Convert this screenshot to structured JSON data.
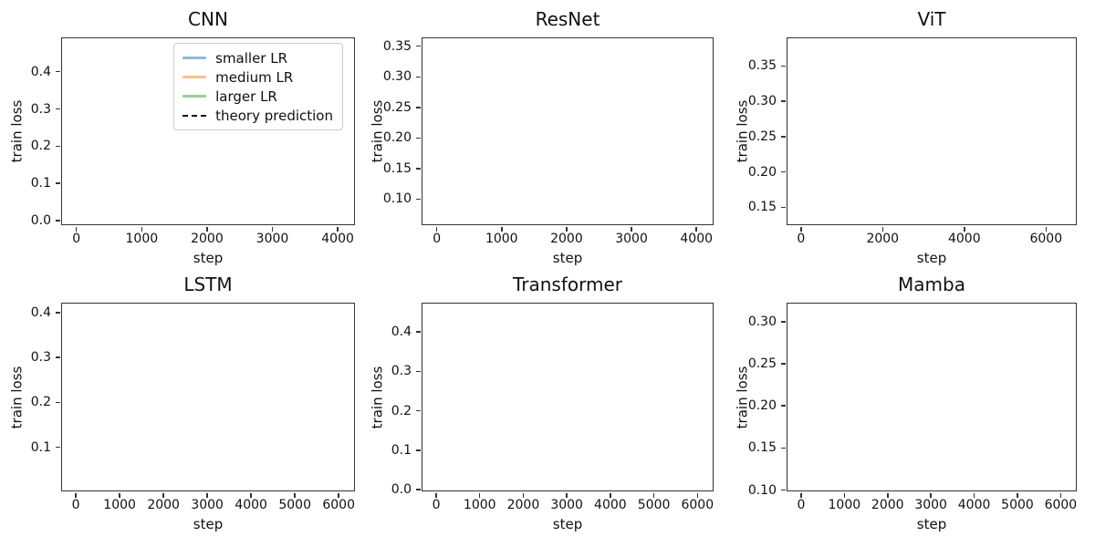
{
  "figure": {
    "background": "#ffffff",
    "text_color": "#111111",
    "spine_color": "#333333"
  },
  "legend": {
    "position": "upper-right of CNN subplot",
    "items": [
      {
        "label": "smaller LR",
        "color": "#8fbbd9",
        "dash": false
      },
      {
        "label": "medium LR",
        "color": "#ffbf86",
        "dash": false
      },
      {
        "label": "larger LR",
        "color": "#95cf95",
        "dash": false
      },
      {
        "label": "theory prediction",
        "color": "#111111",
        "dash": true
      }
    ]
  },
  "chart_data": [
    {
      "type": "line",
      "title": "CNN",
      "xlabel": "step",
      "ylabel": "train loss",
      "xlim": [
        -220,
        4250
      ],
      "ylim": [
        -0.01,
        0.49
      ],
      "xtick_values": [
        0,
        1000,
        2000,
        3000,
        4000
      ],
      "xtick_labels": [
        "0",
        "1000",
        "2000",
        "3000",
        "4000"
      ],
      "ytick_values": [
        0.0,
        0.1,
        0.2,
        0.3,
        0.4
      ],
      "ytick_labels": [
        "0.0",
        "0.1",
        "0.2",
        "0.3",
        "0.4"
      ],
      "grid": false,
      "has_legend": true,
      "series": []
    },
    {
      "type": "line",
      "title": "ResNet",
      "xlabel": "step",
      "ylabel": "train loss",
      "xlim": [
        -220,
        4250
      ],
      "ylim": [
        0.059,
        0.363
      ],
      "xtick_values": [
        0,
        1000,
        2000,
        3000,
        4000
      ],
      "xtick_labels": [
        "0",
        "1000",
        "2000",
        "3000",
        "4000"
      ],
      "ytick_values": [
        0.1,
        0.15,
        0.2,
        0.25,
        0.3,
        0.35
      ],
      "ytick_labels": [
        "0.10",
        "0.15",
        "0.20",
        "0.25",
        "0.30",
        "0.35"
      ],
      "grid": false,
      "has_legend": false,
      "series": []
    },
    {
      "type": "line",
      "title": "ViT",
      "xlabel": "step",
      "ylabel": "train loss",
      "xlim": [
        -330,
        6730
      ],
      "ylim": [
        0.126,
        0.389
      ],
      "xtick_values": [
        0,
        2000,
        4000,
        6000
      ],
      "xtick_labels": [
        "0",
        "2000",
        "4000",
        "6000"
      ],
      "ytick_values": [
        0.15,
        0.2,
        0.25,
        0.3,
        0.35
      ],
      "ytick_labels": [
        "0.15",
        "0.20",
        "0.25",
        "0.30",
        "0.35"
      ],
      "grid": false,
      "has_legend": false,
      "series": []
    },
    {
      "type": "line",
      "title": "LSTM",
      "xlabel": "step",
      "ylabel": "train loss",
      "xlim": [
        -315,
        6350
      ],
      "ylim": [
        0.004,
        0.42
      ],
      "xtick_values": [
        0,
        1000,
        2000,
        3000,
        4000,
        5000,
        6000
      ],
      "xtick_labels": [
        "0",
        "1000",
        "2000",
        "3000",
        "4000",
        "5000",
        "6000"
      ],
      "ytick_values": [
        0.1,
        0.2,
        0.3,
        0.4
      ],
      "ytick_labels": [
        "0.1",
        "0.2",
        "0.3",
        "0.4"
      ],
      "grid": false,
      "has_legend": false,
      "series": []
    },
    {
      "type": "line",
      "title": "Transformer",
      "xlabel": "step",
      "ylabel": "train loss",
      "xlim": [
        -315,
        6350
      ],
      "ylim": [
        -0.002,
        0.472
      ],
      "xtick_values": [
        0,
        1000,
        2000,
        3000,
        4000,
        5000,
        6000
      ],
      "xtick_labels": [
        "0",
        "1000",
        "2000",
        "3000",
        "4000",
        "5000",
        "6000"
      ],
      "ytick_values": [
        0.0,
        0.1,
        0.2,
        0.3,
        0.4
      ],
      "ytick_labels": [
        "0.0",
        "0.1",
        "0.2",
        "0.3",
        "0.4"
      ],
      "grid": false,
      "has_legend": false,
      "series": []
    },
    {
      "type": "line",
      "title": "Mamba",
      "xlabel": "step",
      "ylabel": "train loss",
      "xlim": [
        -315,
        6350
      ],
      "ylim": [
        0.0995,
        0.3215
      ],
      "xtick_values": [
        0,
        1000,
        2000,
        3000,
        4000,
        5000,
        6000
      ],
      "xtick_labels": [
        "0",
        "1000",
        "2000",
        "3000",
        "4000",
        "5000",
        "6000"
      ],
      "ytick_values": [
        0.1,
        0.15,
        0.2,
        0.25,
        0.3
      ],
      "ytick_labels": [
        "0.10",
        "0.15",
        "0.20",
        "0.25",
        "0.30"
      ],
      "grid": false,
      "has_legend": false,
      "series": []
    }
  ]
}
